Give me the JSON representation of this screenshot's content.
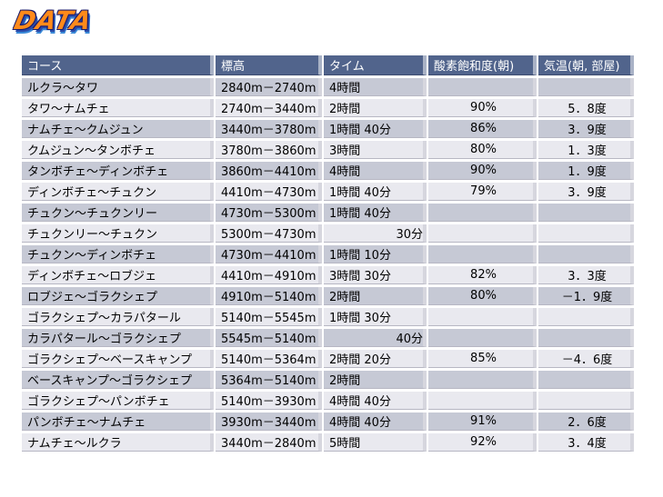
{
  "logo": {
    "text": "DATA"
  },
  "table": {
    "headers": [
      "コース",
      "標高",
      "タイム",
      "酸素飽和度(朝)",
      "気温(朝, 部屋)"
    ],
    "rows": [
      [
        "ルクラ～タワ",
        "2840m－2740m",
        "4時間",
        "",
        ""
      ],
      [
        "タワ～ナムチェ",
        "2740m－3440m",
        "2時間",
        "90%",
        "5．8度"
      ],
      [
        "ナムチェ～クムジュン",
        "3440m－3780m",
        "1時間 40分",
        "86%",
        "3．9度"
      ],
      [
        "クムジュン～タンボチェ",
        "3780m－3860m",
        "3時間",
        "80%",
        "1．3度"
      ],
      [
        "タンボチェ～ディンボチェ",
        "3860m－4410m",
        "4時間",
        "90%",
        "1．9度"
      ],
      [
        "ディンボチェ～チュクン",
        "4410m－4730m",
        "1時間 40分",
        "79%",
        "3．9度"
      ],
      [
        "チュクン～チュクンリー",
        "4730m－5300m",
        "1時間 40分",
        "",
        ""
      ],
      [
        "チュクンリー～チュクン",
        "5300m－4730m",
        "30分",
        "",
        ""
      ],
      [
        "チュクン～ディンボチェ",
        "4730m－4410m",
        "1時間 10分",
        "",
        ""
      ],
      [
        "ディンボチェ～ロブジェ",
        "4410m－4910m",
        "3時間 30分",
        "82%",
        "3．3度"
      ],
      [
        "ロブジェ～ゴラクシェプ",
        "4910m－5140m",
        "2時間",
        "80%",
        "－1．9度"
      ],
      [
        "ゴラクシェプ～カラパタール",
        "5140m－5545m",
        "1時間 30分",
        "",
        ""
      ],
      [
        "カラパタール～ゴラクシェプ",
        "5545m－5140m",
        "40分",
        "",
        ""
      ],
      [
        "ゴラクシェプ～ベースキャンプ",
        "5140m－5364m",
        "2時間 20分",
        "85%",
        "－4．6度"
      ],
      [
        "ベースキャンプ～ゴラクシェプ",
        "5364m－5140m",
        "2時間",
        "",
        ""
      ],
      [
        "ゴラクシェプ～パンボチェ",
        "5140m－3930m",
        "4時間 40分",
        "",
        ""
      ],
      [
        "パンボチェ～ナムチェ",
        "3930m－3440m",
        "4時間 40分",
        "91%",
        "2．6度"
      ],
      [
        "ナムチェ～ルクラ",
        "3440m－2840m",
        "5時間",
        "92%",
        "3．4度"
      ]
    ]
  }
}
